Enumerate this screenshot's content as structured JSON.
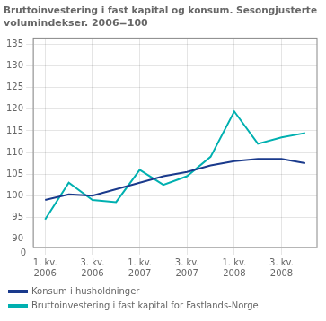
{
  "chart_data": {
    "type": "line",
    "title": "Bruttoinvestering i fast kapital og konsum. Sesongjusterte\nvolumindekser. 2006=100",
    "categories": [
      "1. kv.\n2006",
      null,
      "3. kv.\n2006",
      null,
      "1. kv.\n2007",
      null,
      "3. kv.\n2007",
      null,
      "1. kv.\n2008",
      null,
      "3. kv.\n2008",
      null
    ],
    "series": [
      {
        "name": "Konsum i husholdninger",
        "color": "#1a3a8c",
        "values": [
          99.0,
          100.3,
          100.0,
          101.5,
          103.0,
          104.5,
          105.5,
          107.0,
          108.0,
          108.5,
          108.5,
          107.5
        ]
      },
      {
        "name": "Bruttoinvestering i fast kapital for Fastlands-Norge",
        "color": "#00b0b0",
        "values": [
          94.5,
          103.0,
          99.0,
          98.5,
          106.0,
          102.5,
          104.5,
          109.0,
          119.5,
          112.0,
          113.5,
          114.5
        ]
      }
    ],
    "ylim": [
      88.0,
      136.5
    ],
    "yticks": [
      90,
      95,
      100,
      105,
      110,
      115,
      120,
      125,
      130,
      135
    ],
    "grid": true,
    "legend": "bottom",
    "annotations": [
      {
        "text": "0",
        "y": 88.0
      }
    ]
  }
}
